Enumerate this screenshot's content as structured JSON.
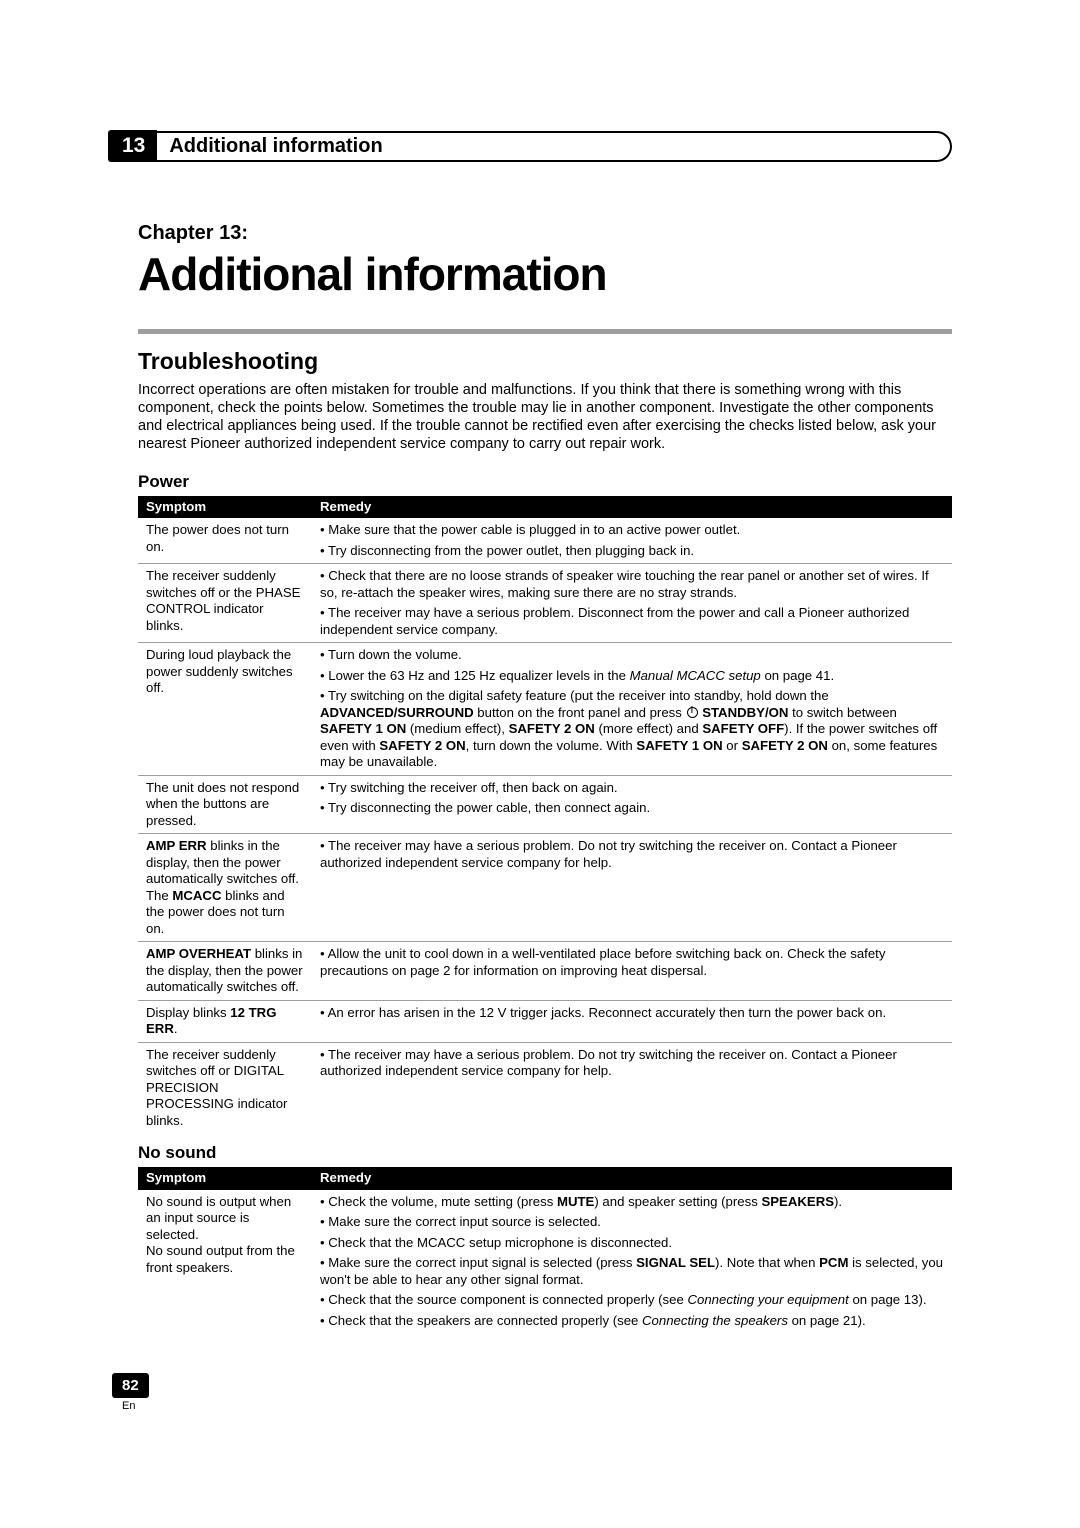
{
  "header": {
    "chapter_number": "13",
    "chapter_header_title": "Additional information"
  },
  "title_block": {
    "chapter_label": "Chapter 13:",
    "main_title": "Additional information"
  },
  "section": {
    "heading": "Troubleshooting",
    "intro": "Incorrect operations are often mistaken for trouble and malfunctions. If you think that there is something wrong with this component, check the points below. Sometimes the trouble may lie in another component. Investigate the other components and electrical appliances being used. If the trouble cannot be rectified even after exercising the checks listed below, ask your nearest Pioneer authorized independent service company to carry out repair work."
  },
  "power": {
    "heading": "Power",
    "col_symptom": "Symptom",
    "col_remedy": "Remedy",
    "rows": [
      {
        "symptom": "The power does not turn on.",
        "remedies": [
          {
            "text": "Make sure that the power cable is plugged in to an active power outlet."
          },
          {
            "text": "Try disconnecting from the power outlet, then plugging back in."
          }
        ]
      },
      {
        "symptom": "The receiver suddenly switches off or the PHASE CONTROL indicator blinks.",
        "remedies": [
          {
            "text": "Check that there are no loose strands of speaker wire touching the rear panel or another set of wires. If so, re-attach the speaker wires, making sure there are no stray strands."
          },
          {
            "text": "The receiver may have a serious problem. Disconnect from the power and call a Pioneer authorized independent service company."
          }
        ]
      },
      {
        "symptom": "During loud playback the power suddenly switches off.",
        "remedies": [
          {
            "text": "Turn down the volume."
          },
          {
            "html": "Lower the 63 Hz and 125 Hz equalizer levels in the <span class=\"italic\">Manual MCACC setup</span> on page 41."
          },
          {
            "html": "Try switching on the digital safety feature (put the receiver into standby, hold down the <span class=\"bold\">ADVANCED/SURROUND</span> button on the front panel and press <span class=\"power-icon\" data-name=\"standby-icon\" data-interactable=\"false\"></span> <span class=\"bold\">STANDBY/ON</span> to switch between <span class=\"bold\">SAFETY 1 ON</span> (medium effect), <span class=\"bold\">SAFETY 2 ON</span> (more effect) and <span class=\"bold\">SAFETY OFF</span>). If the power switches off even with <span class=\"bold\">SAFETY 2 ON</span>, turn down the volume. With <span class=\"bold\">SAFETY 1 ON</span> or <span class=\"bold\">SAFETY 2 ON</span> on, some features may be unavailable."
          }
        ]
      },
      {
        "symptom": "The unit does not respond when the buttons are pressed.",
        "remedies": [
          {
            "text": "Try switching the receiver off, then back on again."
          },
          {
            "text": "Try disconnecting the power cable, then connect again."
          }
        ]
      },
      {
        "symptom_html": "<span class=\"bold\">AMP ERR</span> blinks in the display, then the power automatically switches off. The <span class=\"bold\">MCACC</span> blinks and the power does not turn on.",
        "remedies": [
          {
            "text": "The receiver may have a serious problem. Do not try switching the receiver on. Contact a Pioneer authorized independent service company for help."
          }
        ]
      },
      {
        "symptom_html": "<span class=\"bold\">AMP OVERHEAT</span> blinks in the display, then the power automatically switches off.",
        "remedies": [
          {
            "text": "Allow the unit to cool down in a well-ventilated place before switching back on. Check the safety precautions on page 2 for information on improving heat dispersal."
          }
        ]
      },
      {
        "symptom_html": "Display blinks <span class=\"bold\">12 TRG ERR</span>.",
        "remedies": [
          {
            "text": "An error has arisen in the 12 V trigger jacks. Reconnect accurately then turn the power back on."
          }
        ]
      },
      {
        "symptom": "The receiver suddenly switches off or DIGITAL PRECISION PROCESSING indicator blinks.",
        "remedies": [
          {
            "text": "The receiver may have a serious problem. Do not try switching the receiver on. Contact a Pioneer authorized independent service company for help."
          }
        ]
      }
    ]
  },
  "nosound": {
    "heading": "No sound",
    "col_symptom": "Symptom",
    "col_remedy": "Remedy",
    "rows": [
      {
        "symptom": "No sound is output when an input source is selected.\nNo sound output from the front speakers.",
        "remedies": [
          {
            "html": "Check the volume, mute setting (press <span class=\"bold\">MUTE</span>) and speaker setting (press <span class=\"bold\">SPEAKERS</span>)."
          },
          {
            "text": "Make sure the correct input source is selected."
          },
          {
            "text": "Check that the MCACC setup microphone is disconnected."
          },
          {
            "html": "Make sure the correct input signal is selected (press <span class=\"bold\">SIGNAL SEL</span>). Note that when <span class=\"bold\">PCM</span> is selected, you won't be able to hear any other signal format."
          },
          {
            "html": "Check that the source component is connected properly (see <span class=\"italic\">Connecting your equipment</span> on page 13)."
          },
          {
            "html": "Check that the speakers are connected properly (see <span class=\"italic\">Connecting the speakers</span> on page 21)."
          }
        ]
      }
    ]
  },
  "footer": {
    "page_number": "82",
    "lang": "En"
  }
}
